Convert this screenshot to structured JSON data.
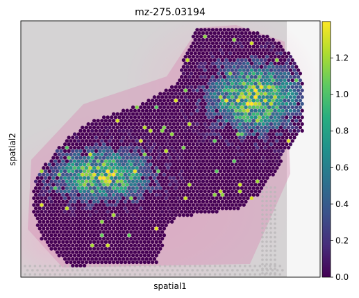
{
  "chart_data": {
    "type": "scatter",
    "title": "mz-275.03194",
    "xlabel": "spatial1",
    "ylabel": "spatial2",
    "colorbar": {
      "colormap": "viridis",
      "range": [
        0.0,
        1.4
      ],
      "ticks": [
        "0.0",
        "0.2",
        "0.4",
        "0.6",
        "0.8",
        "1.0",
        "1.2"
      ],
      "tick_values": [
        0.0,
        0.2,
        0.4,
        0.6,
        0.8,
        1.0,
        1.2
      ]
    },
    "background": "tissue-image",
    "grid": false,
    "hotspots": [
      {
        "x": 0.78,
        "y": 0.3,
        "peak": 1.25
      },
      {
        "x": 0.27,
        "y": 0.6,
        "peak": 1.15
      }
    ]
  },
  "colors": {
    "viridis_low": "#440154",
    "viridis_mid": "#21918c",
    "viridis_high": "#fde725",
    "tissue_pink": "#e7b8cf",
    "slide_gray": "#d4d2d3"
  }
}
